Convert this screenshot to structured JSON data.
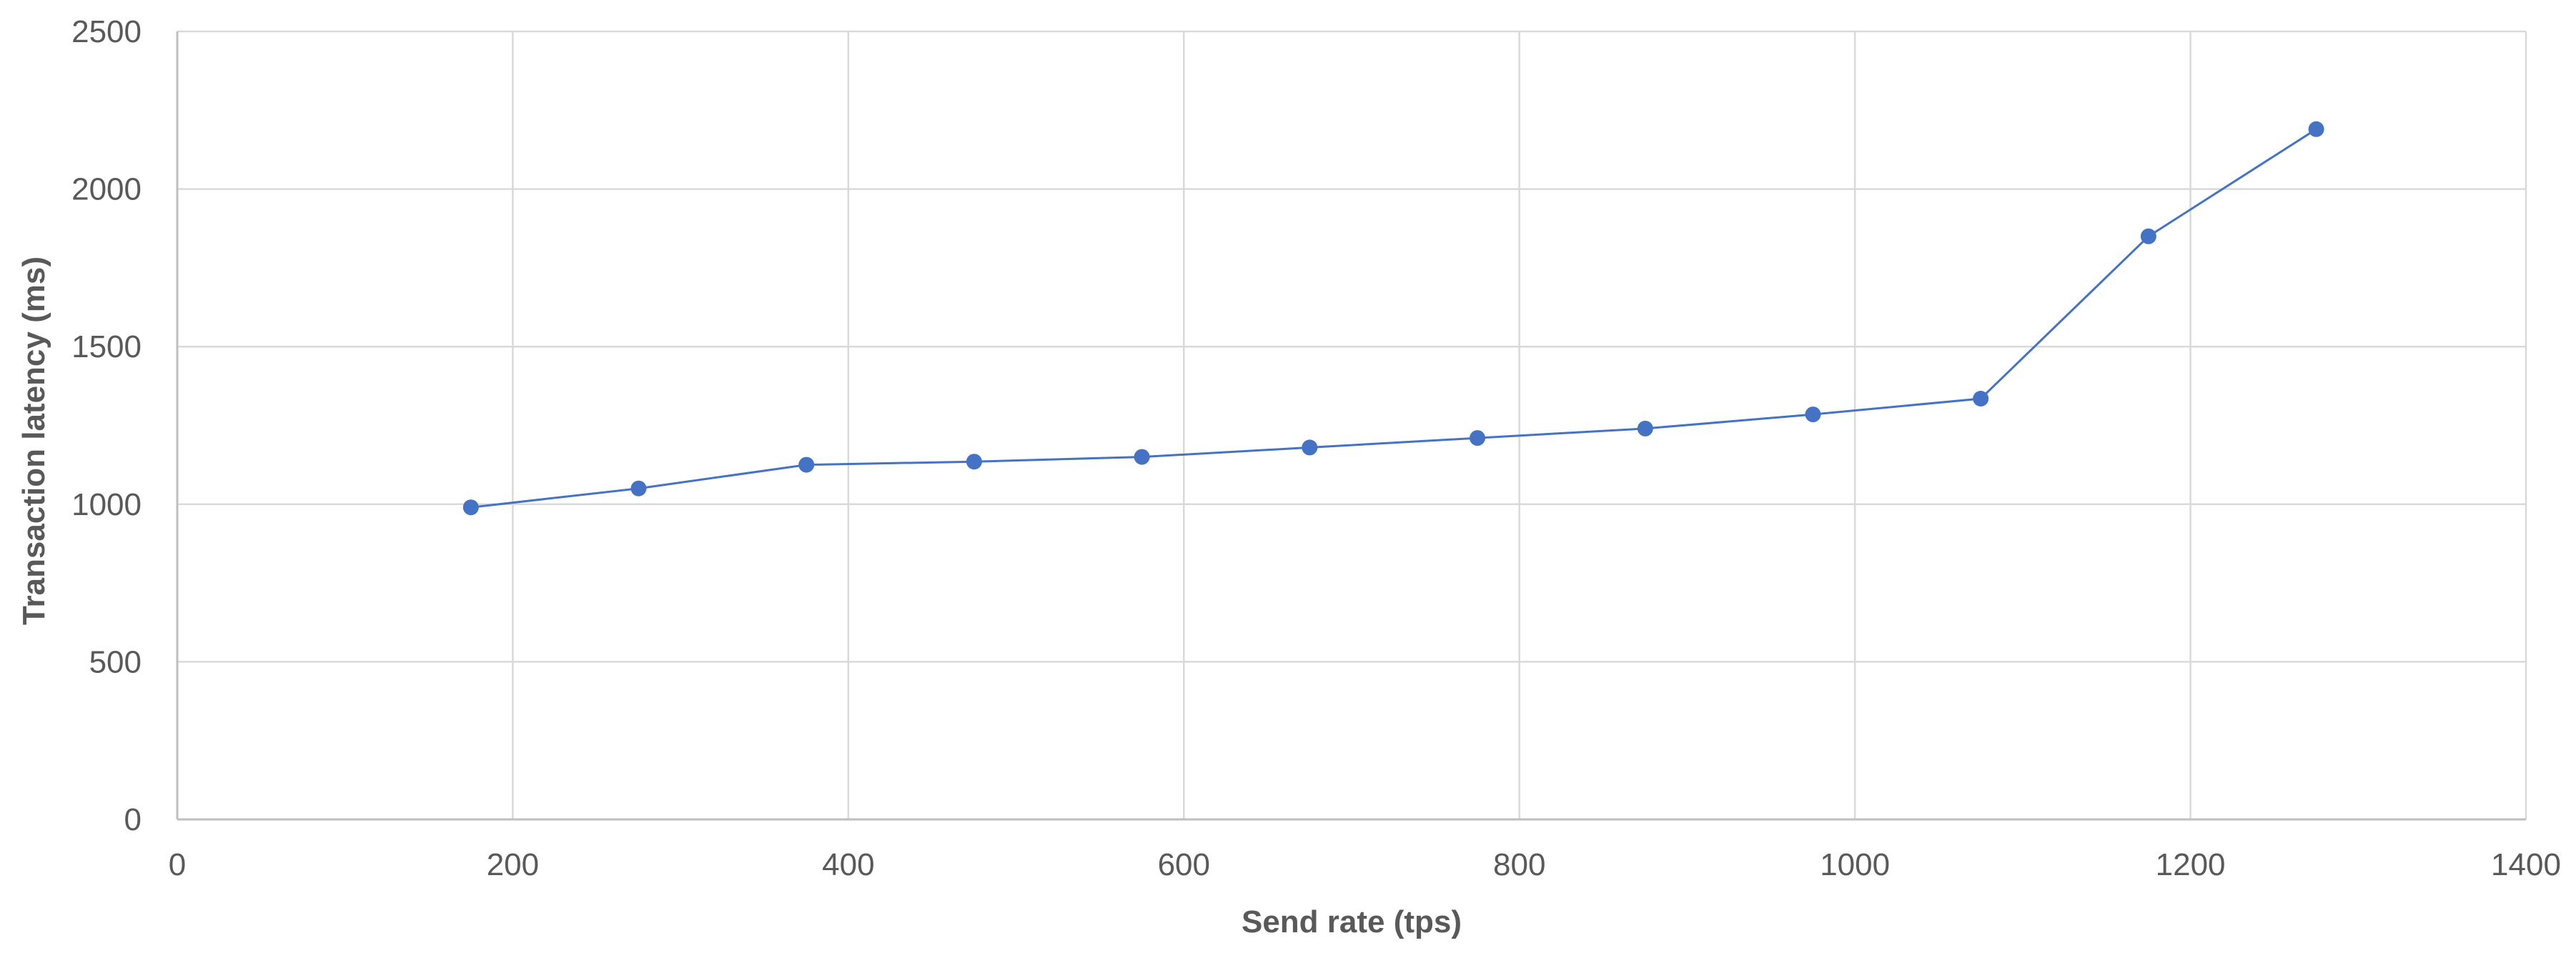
{
  "chart_data": {
    "type": "line",
    "title": "",
    "xlabel": "Send rate (tps)",
    "ylabel": "Transaction latency (ms)",
    "xlim": [
      0,
      1400
    ],
    "ylim": [
      0,
      2500
    ],
    "x_ticks": [
      0,
      200,
      400,
      600,
      800,
      1000,
      1200,
      1400
    ],
    "y_ticks": [
      0,
      500,
      1000,
      1500,
      2000,
      2500
    ],
    "grid": true,
    "legend": "none",
    "series": [
      {
        "color": "#4472c4",
        "x": [
          175,
          275,
          375,
          475,
          575,
          675,
          775,
          875,
          975,
          1075,
          1175,
          1275
        ],
        "y": [
          990,
          1050,
          1125,
          1135,
          1150,
          1180,
          1210,
          1240,
          1285,
          1335,
          1850,
          2190
        ]
      }
    ]
  }
}
